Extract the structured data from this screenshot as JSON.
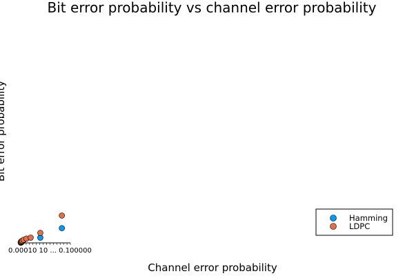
{
  "chart_data": {
    "type": "scatter",
    "title": "Bit error probability vs channel error probability",
    "xlabel": "Channel error probability",
    "ylabel": "Bit error probability",
    "xlim": [
      0,
      18
    ],
    "ylim": [
      0,
      18
    ],
    "x_ticks": [
      "10",
      "",
      "",
      "",
      "",
      "",
      "",
      "",
      "",
      "",
      "",
      "",
      "",
      "",
      "",
      ""
    ],
    "x_tick_overlap_text": "0.00010 10 ... 0.100000",
    "grid": false,
    "legend_position": "bottom-right",
    "series": [
      {
        "name": "Hamming",
        "color": "#009AFA",
        "points": [
          [
            0.5,
            0.1
          ],
          [
            0.6,
            0.2
          ],
          [
            0.8,
            0.3
          ],
          [
            1.0,
            0.5
          ],
          [
            1.4,
            1.0
          ],
          [
            7.4,
            2.2
          ],
          [
            15.0,
            6.2
          ]
        ]
      },
      {
        "name": "LDPC",
        "color": "#E26F46",
        "points": [
          [
            0.5,
            0.3
          ],
          [
            0.6,
            0.5
          ],
          [
            0.8,
            0.7
          ],
          [
            1.0,
            0.9
          ],
          [
            1.5,
            1.3
          ],
          [
            2.5,
            1.8
          ],
          [
            4.0,
            2.2
          ],
          [
            7.4,
            4.2
          ],
          [
            15.0,
            11.5
          ]
        ]
      }
    ]
  }
}
